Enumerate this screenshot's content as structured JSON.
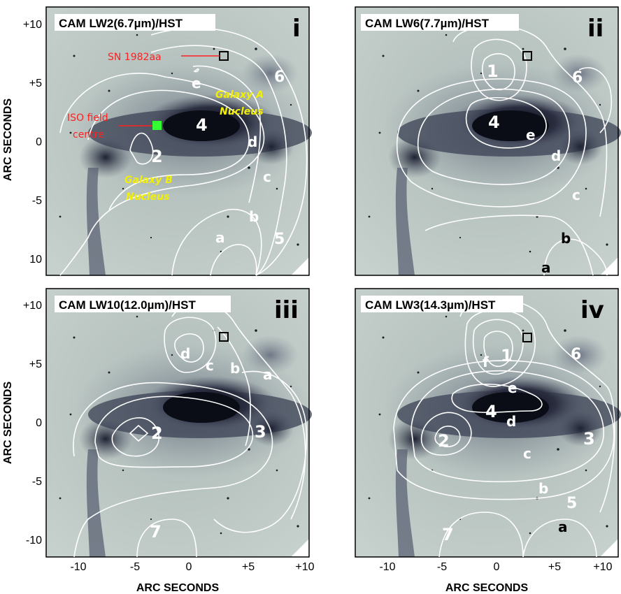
{
  "axis_titles": {
    "x": "ARC SECONDS",
    "y": "ARC SECONDS"
  },
  "x_ticks": [
    "-10",
    "-5",
    "0",
    "+5",
    "+10"
  ],
  "y_ticks": [
    "+10",
    "+5",
    "0",
    "-5",
    "10"
  ],
  "y_ticks_lower": [
    "+10",
    "+5",
    "0",
    "-5",
    "-10"
  ],
  "panels": [
    {
      "title": "CAM LW2(6.7µm)/HST",
      "roman": "i",
      "labels": {
        "n4": "4",
        "n2": "2",
        "n6": "6",
        "n5": "5",
        "a": "a",
        "b": "b",
        "c": "c",
        "d": "d",
        "e": "e"
      },
      "notes": {
        "sn": "SN 1982aa",
        "iso1": "ISO field",
        "iso2": "centre",
        "galA1": "Galaxy A",
        "galA2": "Nucleus",
        "galB1": "Galaxy B",
        "galB2": "Nucleus"
      }
    },
    {
      "title": "CAM LW6(7.7µm)/HST",
      "roman": "ii",
      "labels": {
        "n1": "1",
        "n4": "4",
        "n6": "6",
        "a": "a",
        "b": "b",
        "c": "c",
        "d": "d",
        "e": "e"
      }
    },
    {
      "title": "CAM LW10(12.0µm)/HST",
      "roman": "iii",
      "labels": {
        "n2": "2",
        "n3": "3",
        "n7": "7",
        "a": "a",
        "b": "b",
        "c": "c",
        "d": "d"
      }
    },
    {
      "title": "CAM LW3(14.3µm)/HST",
      "roman": "iv",
      "labels": {
        "n1": "1",
        "n2": "2",
        "n3": "3",
        "n4": "4",
        "n5": "5",
        "n6": "6",
        "n7": "7",
        "a": "a",
        "b": "b",
        "c": "c",
        "d": "d",
        "e": "e",
        "f": "f"
      }
    }
  ],
  "colors": {
    "sky": "#bcc8c4",
    "ink": "#1c1e2a",
    "contour": "#ffffff",
    "note_red": "#ff2020",
    "note_yellow": "#f2f000",
    "iso_marker": "#33ff33"
  }
}
